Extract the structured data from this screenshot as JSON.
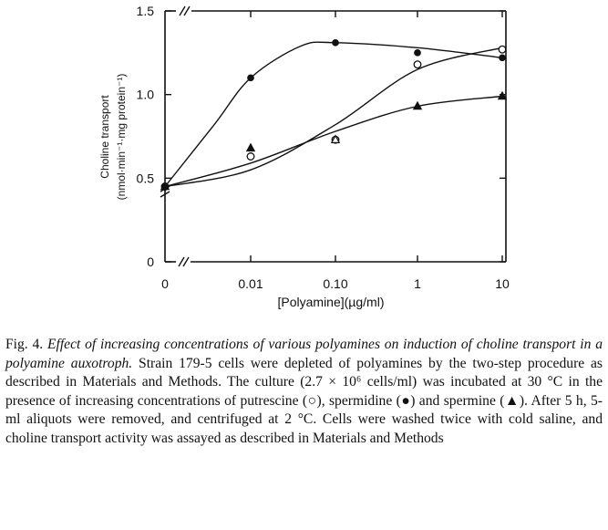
{
  "chart_data": {
    "type": "line",
    "x": [
      "0",
      "0.01",
      "0.10",
      "1",
      "10"
    ],
    "x_ticks": [
      "0",
      "0.01",
      "0.10",
      "1",
      "10"
    ],
    "y_ticks": [
      "0",
      "0.5",
      "1.0",
      "1.5"
    ],
    "ylim": [
      0,
      1.5
    ],
    "xscale": "log (with broken axis at 0)",
    "xlabel": "[Polyamine](µg/ml)",
    "ylabel_line1": "Choline transport",
    "ylabel_line2": "(nmol·min⁻¹·mg protein⁻¹)",
    "series": [
      {
        "name": "putrescine (○)",
        "marker": "open-circle",
        "values": [
          0.45,
          0.63,
          0.73,
          1.18,
          1.27
        ]
      },
      {
        "name": "spermidine (●)",
        "marker": "filled-circle",
        "values": [
          0.45,
          1.1,
          1.31,
          1.25,
          1.22
        ]
      },
      {
        "name": "spermine (▲)",
        "marker": "filled-triangle",
        "values": [
          0.45,
          0.68,
          0.73,
          0.93,
          0.99
        ]
      }
    ],
    "spermine_at_0.10_marker": "open-triangle",
    "grid": false
  },
  "caption": {
    "label": "Fig. 4.",
    "title": "Effect of increasing concentrations of various polyamines on induction of choline transport in a polyamine auxotroph.",
    "body": "Strain 179-5 cells were depleted of polyamines by the two-step procedure as described in Materials and Methods. The culture (2.7 × 10⁶ cells/ml) was incubated at 30 °C in the presence of increasing concentrations of putrescine (○), spermidine (●) and spermine (▲). After 5 h, 5-ml aliquots were removed, and centrifuged at 2 °C. Cells were washed twice with cold saline, and choline transport activity was assayed as described in Materials and Methods"
  }
}
